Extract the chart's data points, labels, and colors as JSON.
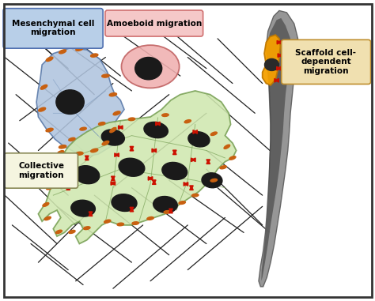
{
  "background_color": "#ffffff",
  "border_color": "#333333",
  "ecm_line_color": "#222222",
  "labels": {
    "mesenchymal": "Mesenchymal cell\nmigration",
    "amoeboid": "Amoeboid migration",
    "collective": "Collective\nmigration",
    "scaffold": "Scaffold cell-\ndependent\nmigration"
  },
  "label_box_colors": {
    "mesenchymal": "#b8cfe8",
    "amoeboid": "#f5c8c8",
    "collective": "#f5f5e0",
    "scaffold": "#f0e0b0"
  },
  "cell_colors": {
    "mesenchymal_body": "#b0c4de",
    "mesenchymal_nucleus": "#1a1a1a",
    "amoeboid_body": "#f0b0b0",
    "amoeboid_nucleus": "#1a1a1a",
    "collective_body": "#d0e8b0",
    "collective_nucleus": "#1a1a1a",
    "scaffold_body": "#f5a000",
    "scaffold_nucleus": "#2a2a2a",
    "scaffold_fiber": "#909090",
    "scaffold_fiber_dark": "#444444"
  },
  "focal_adhesion_color": "#c86010",
  "red_marker_color": "#cc1100",
  "fig_width": 4.74,
  "fig_height": 3.81,
  "dpi": 100
}
